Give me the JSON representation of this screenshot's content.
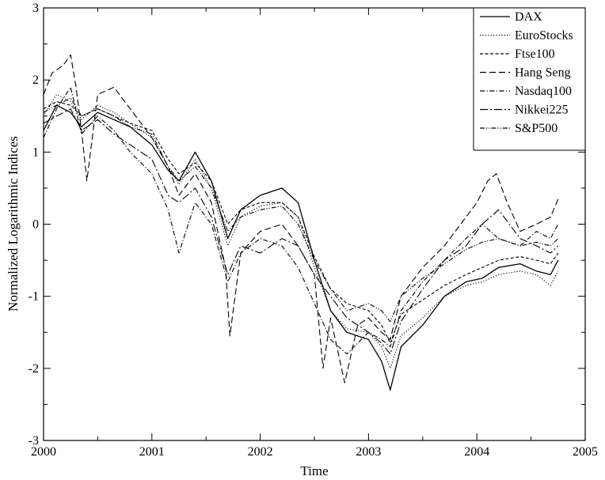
{
  "chart_data": {
    "type": "line",
    "title": "",
    "xlabel": "Time",
    "ylabel": "Normalized Logarithmic Indices",
    "xlim": [
      2000,
      2005
    ],
    "ylim": [
      -3,
      3
    ],
    "xticks": [
      "2000",
      "2001",
      "2002",
      "2003",
      "2004",
      "2005"
    ],
    "yticks": [
      "-3",
      "-2",
      "-1",
      "0",
      "1",
      "2",
      "3"
    ],
    "grid": false,
    "legend_position": "top-right",
    "series": [
      {
        "name": "DAX",
        "dash": "solid",
        "points": [
          [
            2000.0,
            1.3
          ],
          [
            2000.12,
            1.65
          ],
          [
            2000.25,
            1.55
          ],
          [
            2000.35,
            1.35
          ],
          [
            2000.5,
            1.55
          ],
          [
            2000.65,
            1.45
          ],
          [
            2000.8,
            1.35
          ],
          [
            2001.0,
            1.1
          ],
          [
            2001.15,
            0.75
          ],
          [
            2001.25,
            0.6
          ],
          [
            2001.4,
            1.0
          ],
          [
            2001.55,
            0.6
          ],
          [
            2001.7,
            -0.2
          ],
          [
            2001.82,
            0.2
          ],
          [
            2002.0,
            0.4
          ],
          [
            2002.2,
            0.5
          ],
          [
            2002.35,
            0.3
          ],
          [
            2002.5,
            -0.5
          ],
          [
            2002.65,
            -1.2
          ],
          [
            2002.8,
            -1.5
          ],
          [
            2003.0,
            -1.6
          ],
          [
            2003.12,
            -1.9
          ],
          [
            2003.2,
            -2.3
          ],
          [
            2003.3,
            -1.7
          ],
          [
            2003.5,
            -1.4
          ],
          [
            2003.7,
            -1.0
          ],
          [
            2003.9,
            -0.8
          ],
          [
            2004.05,
            -0.75
          ],
          [
            2004.2,
            -0.6
          ],
          [
            2004.4,
            -0.55
          ],
          [
            2004.55,
            -0.65
          ],
          [
            2004.68,
            -0.7
          ],
          [
            2004.75,
            -0.5
          ]
        ]
      },
      {
        "name": "EuroStocks",
        "dash": "dotted",
        "points": [
          [
            2000.0,
            1.5
          ],
          [
            2000.12,
            1.8
          ],
          [
            2000.25,
            1.7
          ],
          [
            2000.35,
            1.45
          ],
          [
            2000.5,
            1.65
          ],
          [
            2000.65,
            1.55
          ],
          [
            2000.8,
            1.4
          ],
          [
            2001.0,
            1.2
          ],
          [
            2001.15,
            0.8
          ],
          [
            2001.25,
            0.55
          ],
          [
            2001.4,
            0.9
          ],
          [
            2001.55,
            0.5
          ],
          [
            2001.7,
            -0.3
          ],
          [
            2001.82,
            0.1
          ],
          [
            2002.0,
            0.25
          ],
          [
            2002.2,
            0.3
          ],
          [
            2002.35,
            0.1
          ],
          [
            2002.5,
            -0.6
          ],
          [
            2002.65,
            -1.2
          ],
          [
            2002.8,
            -1.45
          ],
          [
            2003.0,
            -1.5
          ],
          [
            2003.12,
            -1.7
          ],
          [
            2003.2,
            -2.0
          ],
          [
            2003.3,
            -1.55
          ],
          [
            2003.5,
            -1.3
          ],
          [
            2003.7,
            -1.0
          ],
          [
            2003.9,
            -0.85
          ],
          [
            2004.05,
            -0.8
          ],
          [
            2004.2,
            -0.7
          ],
          [
            2004.4,
            -0.65
          ],
          [
            2004.55,
            -0.7
          ],
          [
            2004.68,
            -0.85
          ],
          [
            2004.75,
            -0.65
          ]
        ]
      },
      {
        "name": "Ftse100",
        "dash": "short-dash",
        "points": [
          [
            2000.0,
            1.6
          ],
          [
            2000.12,
            1.7
          ],
          [
            2000.25,
            1.65
          ],
          [
            2000.35,
            1.5
          ],
          [
            2000.5,
            1.6
          ],
          [
            2000.65,
            1.5
          ],
          [
            2000.8,
            1.4
          ],
          [
            2001.0,
            1.3
          ],
          [
            2001.15,
            0.9
          ],
          [
            2001.25,
            0.7
          ],
          [
            2001.4,
            0.85
          ],
          [
            2001.55,
            0.6
          ],
          [
            2001.7,
            0.0
          ],
          [
            2001.82,
            0.2
          ],
          [
            2002.0,
            0.3
          ],
          [
            2002.2,
            0.3
          ],
          [
            2002.35,
            0.1
          ],
          [
            2002.5,
            -0.45
          ],
          [
            2002.65,
            -0.9
          ],
          [
            2002.8,
            -1.1
          ],
          [
            2003.0,
            -1.2
          ],
          [
            2003.12,
            -1.4
          ],
          [
            2003.2,
            -1.65
          ],
          [
            2003.3,
            -1.25
          ],
          [
            2003.5,
            -1.05
          ],
          [
            2003.7,
            -0.85
          ],
          [
            2003.9,
            -0.7
          ],
          [
            2004.05,
            -0.6
          ],
          [
            2004.2,
            -0.5
          ],
          [
            2004.4,
            -0.45
          ],
          [
            2004.55,
            -0.5
          ],
          [
            2004.68,
            -0.55
          ],
          [
            2004.75,
            -0.4
          ]
        ]
      },
      {
        "name": "Hang Seng",
        "dash": "long-dash",
        "points": [
          [
            2000.0,
            1.8
          ],
          [
            2000.08,
            2.1
          ],
          [
            2000.18,
            2.2
          ],
          [
            2000.25,
            2.35
          ],
          [
            2000.3,
            1.9
          ],
          [
            2000.35,
            1.3
          ],
          [
            2000.4,
            0.6
          ],
          [
            2000.5,
            1.8
          ],
          [
            2000.65,
            1.9
          ],
          [
            2000.8,
            1.6
          ],
          [
            2001.0,
            1.2
          ],
          [
            2001.15,
            0.8
          ],
          [
            2001.25,
            0.4
          ],
          [
            2001.4,
            0.7
          ],
          [
            2001.55,
            0.3
          ],
          [
            2001.68,
            -0.6
          ],
          [
            2001.72,
            -1.55
          ],
          [
            2001.82,
            -0.4
          ],
          [
            2002.0,
            -0.1
          ],
          [
            2002.2,
            0.0
          ],
          [
            2002.35,
            -0.3
          ],
          [
            2002.5,
            -0.7
          ],
          [
            2002.58,
            -2.0
          ],
          [
            2002.65,
            -1.3
          ],
          [
            2002.78,
            -2.2
          ],
          [
            2002.9,
            -1.4
          ],
          [
            2003.0,
            -1.3
          ],
          [
            2003.12,
            -1.5
          ],
          [
            2003.2,
            -1.6
          ],
          [
            2003.3,
            -1.0
          ],
          [
            2003.5,
            -0.6
          ],
          [
            2003.7,
            -0.3
          ],
          [
            2003.85,
            0.0
          ],
          [
            2004.0,
            0.3
          ],
          [
            2004.1,
            0.6
          ],
          [
            2004.18,
            0.7
          ],
          [
            2004.28,
            0.3
          ],
          [
            2004.4,
            -0.1
          ],
          [
            2004.55,
            0.0
          ],
          [
            2004.68,
            0.1
          ],
          [
            2004.75,
            0.35
          ]
        ]
      },
      {
        "name": "Nasdaq100",
        "dash": "dash-dot",
        "points": [
          [
            2000.0,
            1.2
          ],
          [
            2000.12,
            1.6
          ],
          [
            2000.25,
            1.9
          ],
          [
            2000.35,
            1.25
          ],
          [
            2000.5,
            1.5
          ],
          [
            2000.65,
            1.3
          ],
          [
            2000.8,
            1.0
          ],
          [
            2001.0,
            0.7
          ],
          [
            2001.15,
            0.2
          ],
          [
            2001.25,
            -0.4
          ],
          [
            2001.4,
            0.3
          ],
          [
            2001.55,
            0.0
          ],
          [
            2001.7,
            -0.8
          ],
          [
            2001.82,
            -0.4
          ],
          [
            2002.0,
            -0.2
          ],
          [
            2002.2,
            -0.3
          ],
          [
            2002.35,
            -0.6
          ],
          [
            2002.5,
            -1.1
          ],
          [
            2002.65,
            -1.6
          ],
          [
            2002.8,
            -1.8
          ],
          [
            2003.0,
            -1.5
          ],
          [
            2003.12,
            -1.6
          ],
          [
            2003.2,
            -1.7
          ],
          [
            2003.3,
            -1.2
          ],
          [
            2003.5,
            -0.8
          ],
          [
            2003.7,
            -0.5
          ],
          [
            2003.9,
            -0.2
          ],
          [
            2004.05,
            0.0
          ],
          [
            2004.2,
            -0.2
          ],
          [
            2004.4,
            -0.3
          ],
          [
            2004.55,
            -0.1
          ],
          [
            2004.68,
            -0.2
          ],
          [
            2004.75,
            0.0
          ]
        ]
      },
      {
        "name": "Nikkei225",
        "dash": "long-dash-dot",
        "points": [
          [
            2000.0,
            1.4
          ],
          [
            2000.12,
            1.5
          ],
          [
            2000.25,
            1.6
          ],
          [
            2000.35,
            1.3
          ],
          [
            2000.5,
            1.45
          ],
          [
            2000.65,
            1.25
          ],
          [
            2000.8,
            1.1
          ],
          [
            2001.0,
            0.9
          ],
          [
            2001.15,
            0.4
          ],
          [
            2001.25,
            0.3
          ],
          [
            2001.4,
            0.5
          ],
          [
            2001.55,
            0.1
          ],
          [
            2001.7,
            -0.7
          ],
          [
            2001.82,
            -0.3
          ],
          [
            2002.0,
            -0.4
          ],
          [
            2002.2,
            -0.2
          ],
          [
            2002.35,
            -0.3
          ],
          [
            2002.5,
            -0.7
          ],
          [
            2002.65,
            -1.0
          ],
          [
            2002.8,
            -1.3
          ],
          [
            2003.0,
            -1.5
          ],
          [
            2003.12,
            -1.65
          ],
          [
            2003.2,
            -1.8
          ],
          [
            2003.3,
            -1.35
          ],
          [
            2003.5,
            -0.9
          ],
          [
            2003.7,
            -0.5
          ],
          [
            2003.9,
            -0.3
          ],
          [
            2004.05,
            0.0
          ],
          [
            2004.2,
            0.2
          ],
          [
            2004.4,
            -0.2
          ],
          [
            2004.55,
            -0.3
          ],
          [
            2004.68,
            -0.4
          ],
          [
            2004.75,
            -0.3
          ]
        ]
      },
      {
        "name": "S&P500",
        "dash": "dash-dot-dot",
        "points": [
          [
            2000.0,
            1.55
          ],
          [
            2000.12,
            1.65
          ],
          [
            2000.25,
            1.75
          ],
          [
            2000.35,
            1.5
          ],
          [
            2000.5,
            1.6
          ],
          [
            2000.65,
            1.5
          ],
          [
            2000.8,
            1.35
          ],
          [
            2001.0,
            1.25
          ],
          [
            2001.15,
            0.8
          ],
          [
            2001.25,
            0.6
          ],
          [
            2001.4,
            0.8
          ],
          [
            2001.55,
            0.5
          ],
          [
            2001.7,
            -0.1
          ],
          [
            2001.82,
            0.1
          ],
          [
            2002.0,
            0.2
          ],
          [
            2002.2,
            0.25
          ],
          [
            2002.35,
            0.0
          ],
          [
            2002.5,
            -0.5
          ],
          [
            2002.65,
            -0.9
          ],
          [
            2002.8,
            -1.2
          ],
          [
            2003.0,
            -1.1
          ],
          [
            2003.12,
            -1.2
          ],
          [
            2003.2,
            -1.35
          ],
          [
            2003.3,
            -1.0
          ],
          [
            2003.5,
            -0.75
          ],
          [
            2003.7,
            -0.55
          ],
          [
            2003.9,
            -0.35
          ],
          [
            2004.05,
            -0.25
          ],
          [
            2004.2,
            -0.2
          ],
          [
            2004.4,
            -0.3
          ],
          [
            2004.55,
            -0.25
          ],
          [
            2004.68,
            -0.3
          ],
          [
            2004.75,
            -0.2
          ]
        ]
      }
    ]
  }
}
